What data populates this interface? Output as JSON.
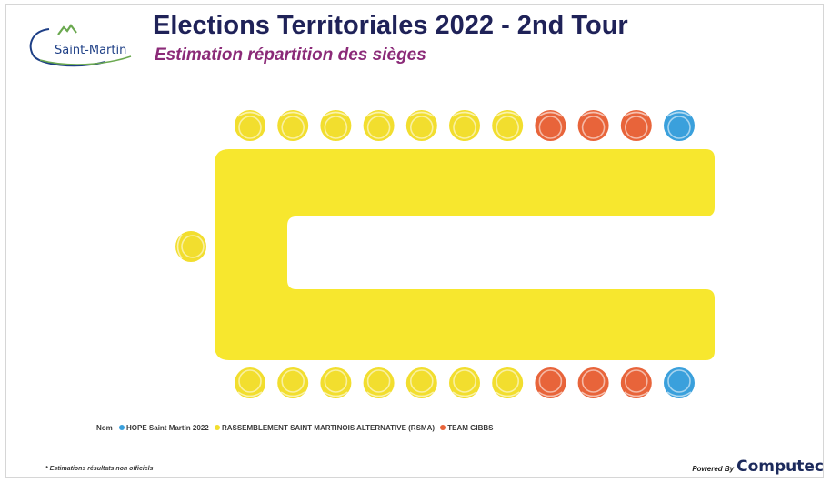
{
  "header": {
    "logo_text": "Saint-Martin",
    "title": "Elections Territoriales 2022 - 2nd Tour",
    "subtitle": "Estimation répartition des sièges"
  },
  "chart_data": {
    "type": "parliament-seating",
    "title": "Elections Territoriales 2022 - 2nd Tour",
    "subtitle": "Estimation répartition des sièges",
    "total_seats": 23,
    "parties": [
      {
        "name": "HOPE Saint Martin 2022",
        "color": "#3aa0dc",
        "seats": 2
      },
      {
        "name": "RASSEMBLEMENT SAINT MARTINOIS ALTERNATIVE (RSMA)",
        "color": "#f2de2e",
        "seats": 15
      },
      {
        "name": "TEAM GIBBS",
        "color": "#e8643a",
        "seats": 6
      }
    ],
    "rows": {
      "top": [
        "RSMA",
        "RSMA",
        "RSMA",
        "RSMA",
        "RSMA",
        "RSMA",
        "RSMA",
        "TEAM GIBBS",
        "TEAM GIBBS",
        "TEAM GIBBS",
        "HOPE Saint Martin 2022"
      ],
      "head": [
        "RSMA"
      ],
      "bottom": [
        "RSMA",
        "RSMA",
        "RSMA",
        "RSMA",
        "RSMA",
        "RSMA",
        "RSMA",
        "TEAM GIBBS",
        "TEAM GIBBS",
        "TEAM GIBBS",
        "HOPE Saint Martin 2022"
      ]
    },
    "table_color": "#f7e72e"
  },
  "legend": {
    "label": "Nom",
    "items": [
      {
        "name": "HOPE Saint Martin 2022",
        "color": "#3aa0dc"
      },
      {
        "name": "RASSEMBLEMENT SAINT MARTINOIS ALTERNATIVE (RSMA)",
        "color": "#f2de2e"
      },
      {
        "name": "TEAM GIBBS",
        "color": "#e8643a"
      }
    ]
  },
  "footer": {
    "note": "* Estimations résultats non officiels",
    "powered_by": "Powered By",
    "brand": "Computec"
  }
}
